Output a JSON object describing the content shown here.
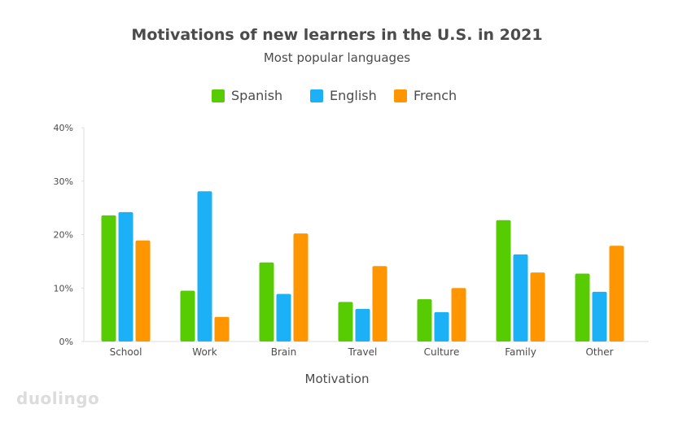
{
  "chart_data": {
    "type": "bar",
    "title": "Motivations of new learners in the U.S. in 2021",
    "subtitle": "Most popular languages",
    "xlabel": "Motivation",
    "ylabel": "",
    "ylim": [
      0,
      40
    ],
    "yticks": [
      "0%",
      "10%",
      "20%",
      "30%",
      "40%"
    ],
    "categories": [
      "School",
      "Work",
      "Brain",
      "Travel",
      "Culture",
      "Family",
      "Other"
    ],
    "series": [
      {
        "name": "Spanish",
        "color": "#58cc02",
        "values": [
          23.6,
          9.5,
          14.8,
          7.4,
          7.9,
          22.7,
          12.7
        ]
      },
      {
        "name": "English",
        "color": "#1cb0f6",
        "values": [
          24.2,
          28.1,
          8.9,
          6.1,
          5.5,
          16.3,
          9.3
        ]
      },
      {
        "name": "French",
        "color": "#ff9600",
        "values": [
          18.9,
          4.6,
          20.2,
          14.1,
          10.0,
          12.9,
          17.9
        ]
      }
    ],
    "grid": false,
    "legend": "top-center"
  },
  "brand": {
    "logo_text": "duolingo"
  }
}
